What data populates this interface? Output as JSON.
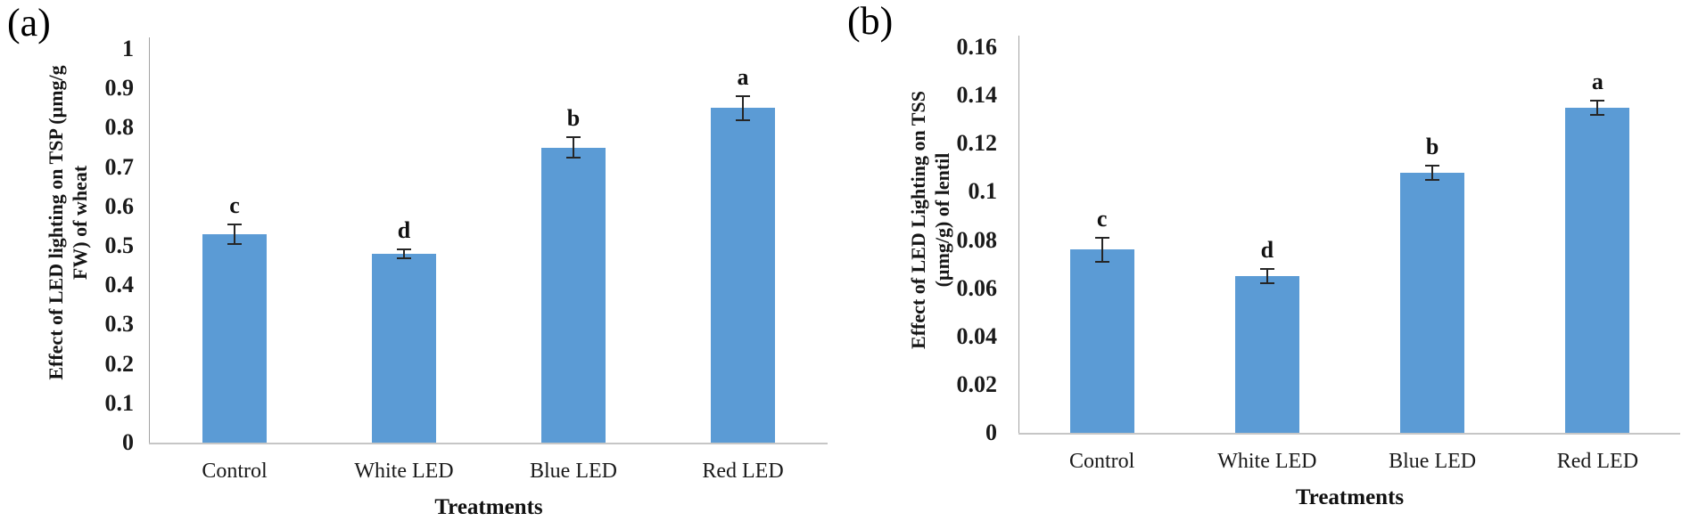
{
  "figure": {
    "background": "#ffffff",
    "bar_color": "#5B9BD5",
    "error_bar_color": "#262626",
    "axis_color": "#a3a3a3"
  },
  "chart_data": [
    {
      "type": "bar",
      "panel_tag": "(a)",
      "categories": [
        "Control",
        "White LED",
        "Blue LED",
        "Red LED"
      ],
      "values": [
        0.53,
        0.48,
        0.75,
        0.85
      ],
      "errors": [
        0.025,
        0.012,
        0.025,
        0.03
      ],
      "sig_letters": [
        "c",
        "d",
        "b",
        "a"
      ],
      "ylabel_line1": "Effect of LED lighting on TSP (µmg/g",
      "ylabel_line2": "FW)  of wheat",
      "xlabel": "Treatments",
      "ylim": [
        0,
        1
      ],
      "yticks": [
        "0",
        "0.1",
        "0.2",
        "0.3",
        "0.4",
        "0.5",
        "0.6",
        "0.7",
        "0.8",
        "0.9",
        "1"
      ],
      "grid": false,
      "legend": "none",
      "bar_color": "#5B9BD5"
    },
    {
      "type": "bar",
      "panel_tag": "(b)",
      "categories": [
        "Control",
        "White LED",
        "Blue LED",
        "Red LED"
      ],
      "values": [
        0.076,
        0.065,
        0.108,
        0.135
      ],
      "errors": [
        0.005,
        0.003,
        0.003,
        0.003
      ],
      "sig_letters": [
        "c",
        "d",
        "b",
        "a"
      ],
      "ylabel_line1": "Effect of LED Lighting  on TSS",
      "ylabel_line2": "(µmg/g) of lentil",
      "xlabel": "Treatments",
      "ylim": [
        0,
        0.16
      ],
      "yticks": [
        "0",
        "0.02",
        "0.04",
        "0.06",
        "0.08",
        "0.1",
        "0.12",
        "0.14",
        "0.16"
      ],
      "grid": false,
      "legend": "none",
      "bar_color": "#5B9BD5"
    }
  ]
}
